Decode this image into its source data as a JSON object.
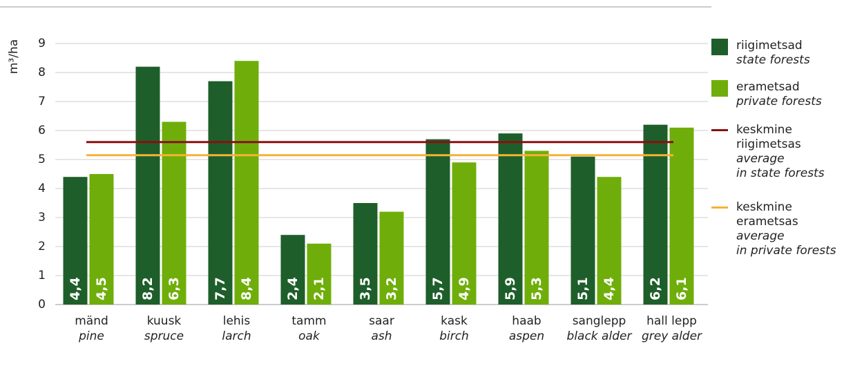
{
  "chart_data": {
    "type": "bar",
    "y_label": "m³/ha",
    "categories": [
      "mänd",
      "kuusk",
      "lehis",
      "tamm",
      "saar",
      "kask",
      "haab",
      "sanglepp",
      "hall lepp"
    ],
    "categories_en": [
      "pine",
      "spruce",
      "larch",
      "oak",
      "ash",
      "birch",
      "aspen",
      "black alder",
      "grey alder"
    ],
    "series": [
      {
        "name": "riigimetsad",
        "name_en": "state forests",
        "color": "#1e5e2a",
        "values": [
          4.4,
          8.2,
          7.7,
          2.4,
          3.5,
          5.7,
          5.9,
          5.1,
          6.2
        ],
        "value_labels": [
          "4,4",
          "8,2",
          "7,7",
          "2,4",
          "3,5",
          "5,7",
          "5,9",
          "5,1",
          "6,2"
        ]
      },
      {
        "name": "erametsad",
        "name_en": "private forests",
        "color": "#6fae0a",
        "values": [
          4.5,
          6.3,
          8.4,
          2.1,
          3.2,
          4.9,
          5.3,
          4.4,
          6.1
        ],
        "value_labels": [
          "4,5",
          "6,3",
          "8,4",
          "2,1",
          "3,2",
          "4,9",
          "5,3",
          "4,4",
          "6,1"
        ]
      }
    ],
    "reference_lines": [
      {
        "name": "keskmine\nriigimetsas",
        "name_en": "average\nin state forests",
        "color": "#8b0f0f",
        "value": 5.6
      },
      {
        "name": "keskmine\nerametsas",
        "name_en": "average\nin private forests",
        "color": "#f7b234",
        "value": 5.15
      }
    ],
    "ylim": [
      0,
      9
    ],
    "yticks": [
      0,
      1,
      2,
      3,
      4,
      5,
      6,
      7,
      8,
      9
    ],
    "grid": true
  }
}
